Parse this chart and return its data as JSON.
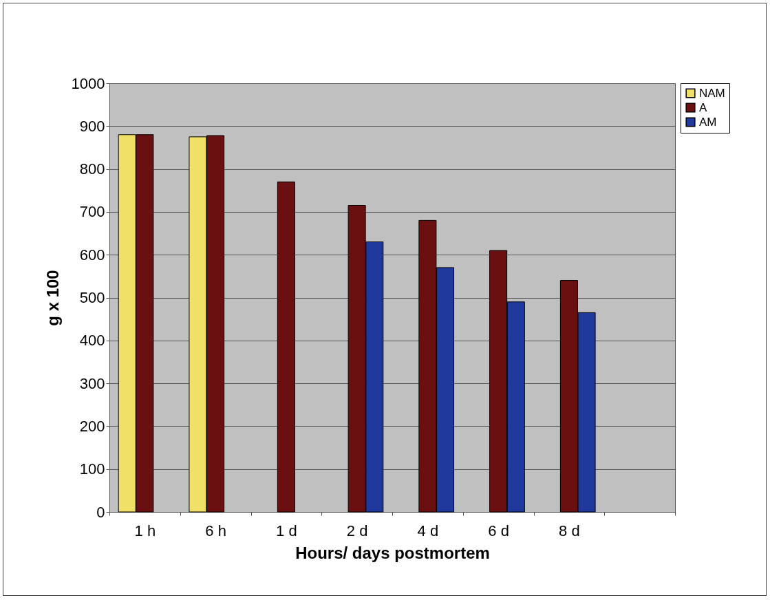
{
  "chart_data": {
    "type": "bar",
    "xlabel": "Hours/ days postmortem",
    "ylabel": "g x 100",
    "categories": [
      "1 h",
      "6 h",
      "1 d",
      "2 d",
      "4 d",
      "6 d",
      "8 d",
      null
    ],
    "series": [
      {
        "name": "NAM",
        "color": "#f0e068",
        "values": [
          880,
          875,
          null,
          null,
          null,
          null,
          null,
          null
        ]
      },
      {
        "name": "A",
        "color": "#6b1010",
        "values": [
          880,
          878,
          770,
          715,
          680,
          610,
          540,
          null
        ]
      },
      {
        "name": "AM",
        "color": "#1f3a9c",
        "values": [
          null,
          null,
          null,
          630,
          570,
          490,
          465,
          null
        ]
      }
    ],
    "ylim": [
      0,
      1000
    ],
    "yticks": [
      0,
      100,
      200,
      300,
      400,
      500,
      600,
      700,
      800,
      900,
      1000
    ],
    "grid": "y",
    "legend": "right"
  }
}
